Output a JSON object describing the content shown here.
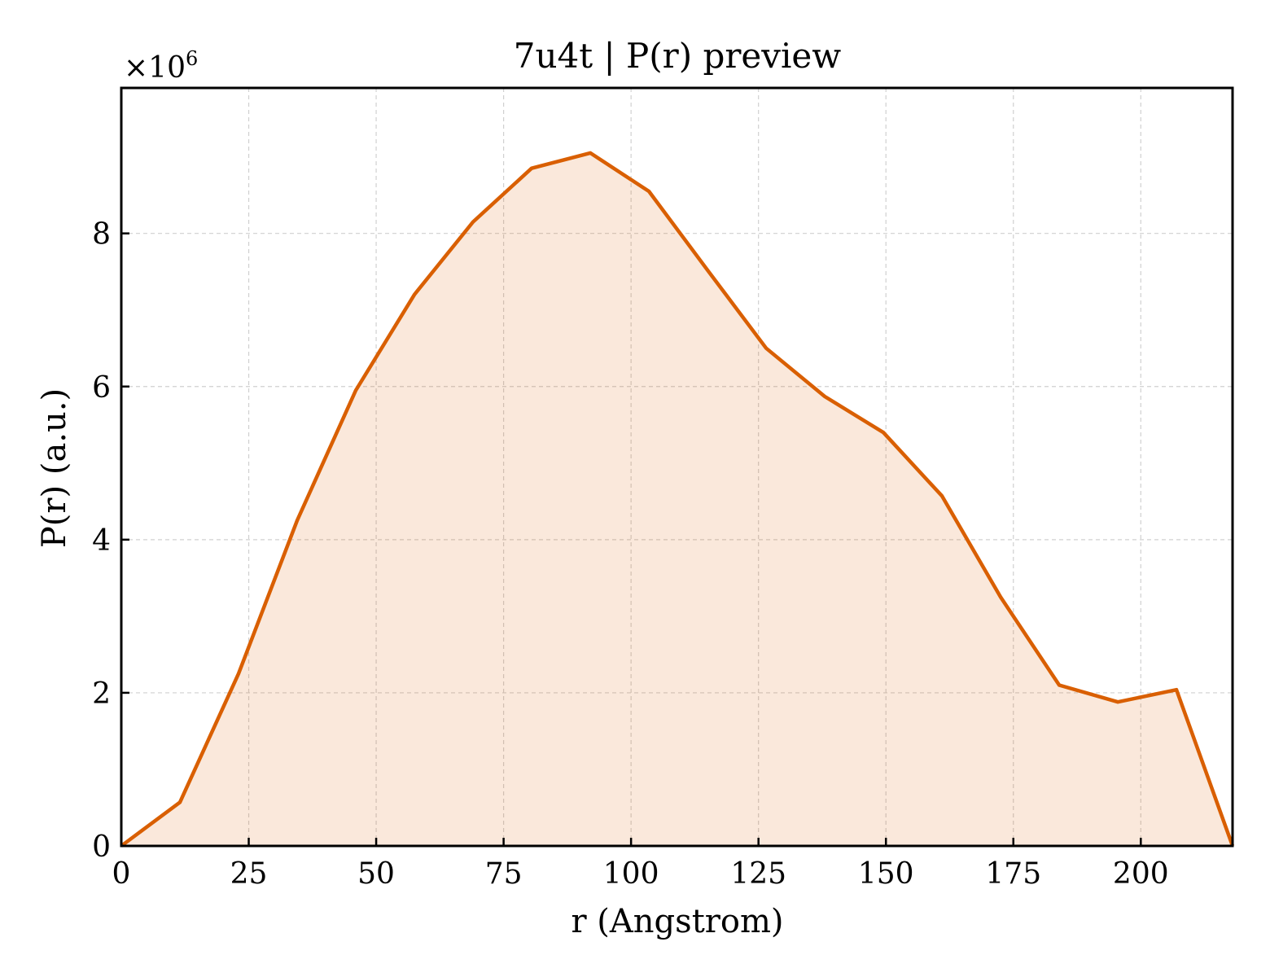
{
  "chart_data": {
    "type": "area",
    "title": "7u4t | P(r) preview",
    "xlabel": "r (Angstrom)",
    "ylabel": "P(r) (a.u.)",
    "y_multiplier": "×10",
    "y_multiplier_exponent": "6",
    "xlim": [
      0,
      218
    ],
    "ylim": [
      0,
      9.9
    ],
    "xticks": [
      0,
      25,
      50,
      75,
      100,
      125,
      150,
      175,
      200
    ],
    "yticks": [
      0,
      2,
      4,
      6,
      8
    ],
    "grid": true,
    "colors": {
      "line": "#d95f02",
      "fill": "#d95f02",
      "fill_opacity": 0.14
    },
    "x": [
      0,
      11.5,
      23,
      34.5,
      46,
      57.5,
      69,
      80.5,
      92,
      103.5,
      115,
      126.5,
      138,
      149.5,
      161,
      172.5,
      184,
      195.5,
      207,
      218
    ],
    "values": [
      0,
      0.57,
      2.25,
      4.25,
      5.95,
      7.2,
      8.15,
      8.85,
      9.05,
      8.55,
      7.52,
      6.5,
      5.87,
      5.4,
      4.57,
      3.25,
      2.1,
      1.88,
      2.04,
      0
    ]
  }
}
